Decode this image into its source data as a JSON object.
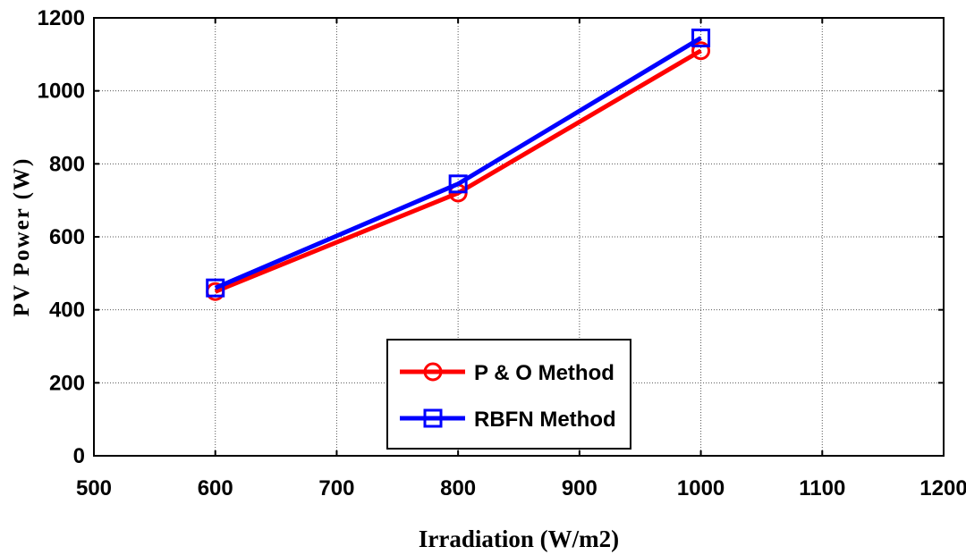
{
  "chart_data": {
    "type": "line",
    "title": "",
    "xlabel": "Irradiation (W/m2)",
    "ylabel": "PV Power (W)",
    "xlim": [
      500,
      1200
    ],
    "ylim": [
      0,
      1200
    ],
    "xticks": [
      500,
      600,
      700,
      800,
      900,
      1000,
      1100,
      1200
    ],
    "yticks": [
      0,
      200,
      400,
      600,
      800,
      1000,
      1200
    ],
    "grid": true,
    "legend_position": "bottom-center",
    "series": [
      {
        "name": "P & O Method",
        "color": "#ff0000",
        "marker": "circle",
        "x": [
          600,
          800,
          1000
        ],
        "y": [
          450,
          720,
          1110
        ]
      },
      {
        "name": "RBFN Method",
        "color": "#0000ff",
        "marker": "square",
        "x": [
          600,
          800,
          1000
        ],
        "y": [
          460,
          745,
          1145
        ]
      }
    ]
  }
}
